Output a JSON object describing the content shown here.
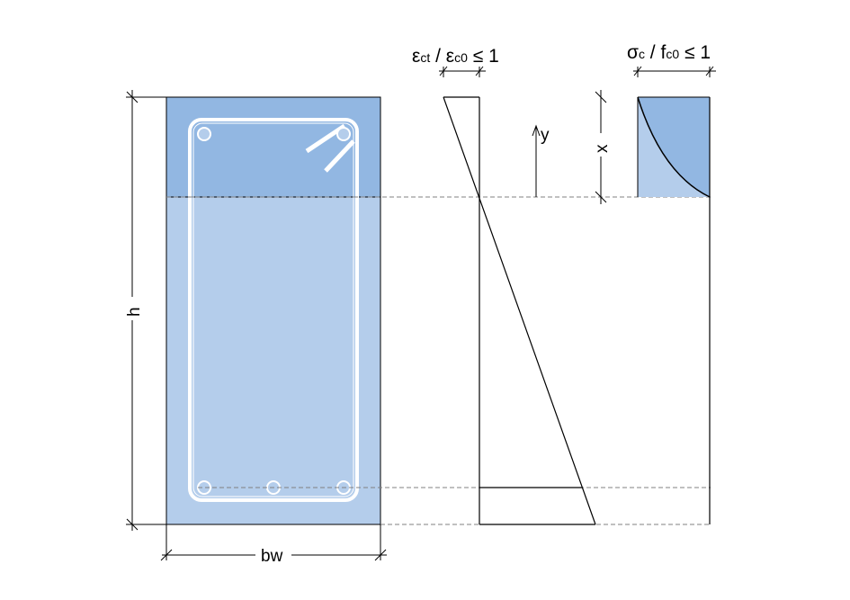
{
  "labels": {
    "strain_eps": "ε",
    "strain_ct": "ct",
    "strain_slash": " / ",
    "strain_eps2": "ε",
    "strain_c0": "c0",
    "strain_le": " ≤ 1",
    "stress_sigma": "σ",
    "stress_c": "c",
    "stress_slash": " / ",
    "stress_f": "f",
    "stress_c0": "c0",
    "stress_le": " ≤ 1",
    "y_axis": "y",
    "neutral_depth": "x",
    "height": "h",
    "width": "bw"
  },
  "colors": {
    "compression_fill": "#92b7e2",
    "section_fill": "#b4cdeb",
    "outline": "#000000",
    "rebar": "#ffffff",
    "dashed": "#808080"
  }
}
